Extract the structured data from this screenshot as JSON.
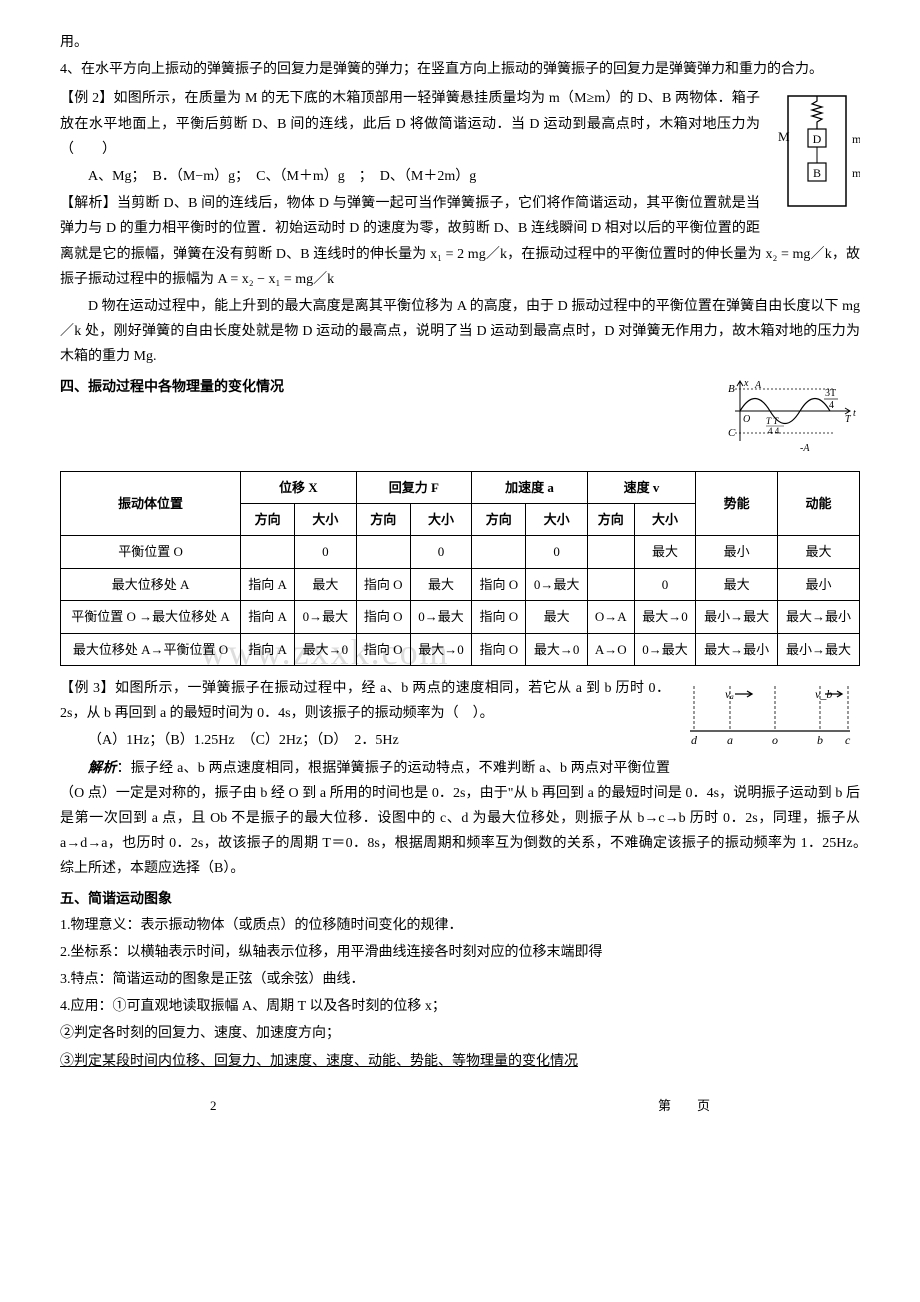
{
  "watermark": "www.zxxk.com",
  "intro": {
    "line1": "用。",
    "line2": "4、在水平方向上振动的弹簧振子的回复力是弹簧的弹力；在竖直方向上振动的弹簧振子的回复力是弹簧弹力和重力的合力。"
  },
  "example2": {
    "title": "【例 2】如图所示，在质量为 M 的无下底的木箱顶部用一轻弹簧悬挂质量均为 m（M≥m）的 D、B 两物体．箱子放在水平地面上，平衡后剪断 D、B 间的连线，此后 D 将做简谐运动．当 D 运动到最高点时，木箱对地压力为（　　）",
    "options": "A、Mg；　B．（M−m）g；　C、（M＋m）g　；　D、（M＋2m）g",
    "analysis1": "【解析】当剪断 D、B 间的连线后，物体 D 与弹簧一起可当作弹簧振子，它们将作简谐运动，其平衡位置就是当弹力与 D 的重力相平衡时的位置．初始运动时 D 的速度为零，故剪断 D、B 连线瞬间 D 相对以后的平衡位置的距离就是它的振幅，弹簧在没有剪断 D、B 连线时的伸长量为 x₁ = 2 mg／k，在振动过程中的平衡位置时的伸长量为 x₂ = mg／k，故振子振动过程中的振幅为 A = x₂ − x₁ =  mg／k",
    "analysis2": "D 物在运动过程中，能上升到的最大高度是离其平衡位移为 A 的高度，由于 D 振动过程中的平衡位置在弹簧自由长度以下 mg／k 处，刚好弹簧的自由长度处就是物 D 运动的最高点，说明了当 D 运动到最高点时，D 对弹簧无作用力，故木箱对地的压力为木箱的重力 Mg.",
    "diagram_labels": {
      "M": "M",
      "D": "D",
      "m1": "m",
      "B": "B",
      "m2": "m"
    }
  },
  "section4": {
    "title": "四、振动过程中各物理量的变化情况",
    "graph_labels": {
      "B": "B",
      "C": "C",
      "O": "O",
      "A": "A",
      "minusA": "-A",
      "T": "T",
      "t": "t",
      "T4": "T",
      "threeTfour": "3T",
      "four": "4",
      "T44": "4 4",
      "x": "x",
      "TT": "T T"
    }
  },
  "table": {
    "headers": {
      "pos": "振动体位置",
      "X": "位移 X",
      "F": "回复力 F",
      "a": "加速度 a",
      "v": "速度 v",
      "PE": "势能",
      "KE": "动能",
      "dir": "方向",
      "size": "大小"
    },
    "rows": [
      {
        "pos": "平衡位置 O",
        "xdir": "",
        "xsize": "0",
        "fdir": "",
        "fsize": "0",
        "adir": "",
        "asize": "0",
        "vdir": "",
        "vsize": "最大",
        "pe": "最小",
        "ke": "最大"
      },
      {
        "pos": "最大位移处 A",
        "xdir": "指向 A",
        "xsize": "最大",
        "fdir": "指向 O",
        "fsize": "最大",
        "adir": "指向 O",
        "asize": "0→最大",
        "vdir": "",
        "vsize": "0",
        "pe": "最大",
        "ke": "最小"
      },
      {
        "pos": "平衡位置 O →最大位移处 A",
        "xdir": "指向 A",
        "xsize": "0→最大",
        "fdir": "指向 O",
        "fsize": "0→最大",
        "adir": "指向 O",
        "asize": "最大",
        "vdir": "O→A",
        "vsize": "最大→0",
        "pe": "最小→最大",
        "ke": "最大→最小"
      },
      {
        "pos": "最大位移处 A→平衡位置 O",
        "xdir": "指向 A",
        "xsize": "最大→0",
        "fdir": "指向 O",
        "fsize": "最大→0",
        "adir": "指向 O",
        "asize": "最大→0",
        "vdir": "A→O",
        "vsize": "0→最大",
        "pe": "最大→最小",
        "ke": "最小→最大"
      }
    ]
  },
  "example3": {
    "title": "【例 3】如图所示，一弹簧振子在振动过程中，经 a、b 两点的速度相同，若它从 a 到 b 历时 0．2s，从 b 再回到 a 的最短时间为 0．4s，则该振子的振动频率为（　）。",
    "options": "（A）1Hz；（B）1.25Hz　（C）2Hz；（D）　2．5Hz",
    "analysis": "解析：振子经 a、b 两点速度相同，根据弹簧振子的运动特点，不难判断 a、b 两点对平衡位置（O 点）一定是对称的，振子由 b 经 O 到 a 所用的时间也是 0．2s，由于\"从 b 再回到 a 的最短时间是 0．4s，说明振子运动到 b 后是第一次回到 a 点，且 Ob 不是振子的最大位移．设图中的 c、d 为最大位移处，则振子从 b→c→b 历时 0．2s，同理，振子从 a→d→a，也历时 0．2s，故该振子的周期 T＝0．8s，根据周期和频率互为倒数的关系，不难确定该振子的振动频率为 1．25Hz。　综上所述，本题应选择（B）。",
    "diagram_labels": {
      "va": "vₐ",
      "vb": "v_b",
      "d": "d",
      "a": "a",
      "o": "o",
      "b": "b",
      "c": "c"
    }
  },
  "section5": {
    "title": "五、简谐运动图象",
    "item1": "1.物理意义：表示振动物体（或质点）的位移随时间变化的规律．",
    "item2": "2.坐标系：以横轴表示时间，纵轴表示位移，用平滑曲线连接各时刻对应的位移末端即得",
    "item3": "3.特点：简谐运动的图象是正弦（或余弦）曲线．",
    "item4": "4.应用：①可直观地读取振幅 A、周期 T 以及各时刻的位移 x；",
    "item5": "②判定各时刻的回复力、速度、加速度方向；",
    "item6": "③判定某段时间内位移、回复力、加速度、速度、动能、势能、等物理量的变化情况"
  },
  "footer": {
    "page": "2",
    "di": "第",
    "ye": "页"
  },
  "colors": {
    "text": "#000000",
    "bg": "#ffffff",
    "border": "#000000",
    "watermark": "#dddddd"
  }
}
